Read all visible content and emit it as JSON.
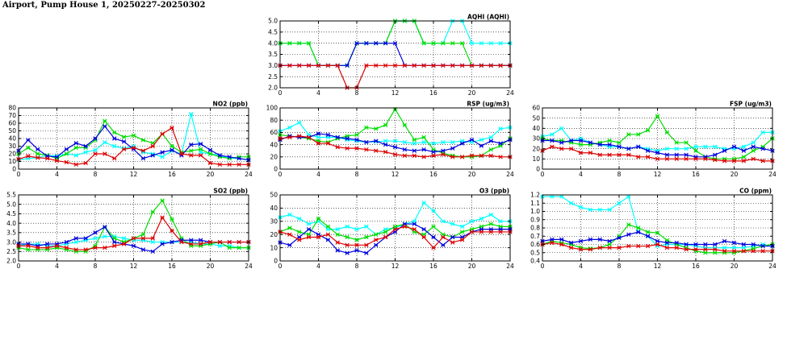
{
  "page": {
    "title": "Airport, Pump House 1, 20250227-20250302"
  },
  "colors": {
    "series": [
      "#00ffff",
      "#00dd00",
      "#0000dd",
      "#dd0000"
    ],
    "grid": "#000000"
  },
  "chart_data": [
    {
      "id": "aqhi",
      "type": "line",
      "title": "AQHI (AQHI)",
      "ylim": [
        2.0,
        5.0
      ],
      "yticks": [
        2.0,
        2.5,
        3.0,
        3.5,
        4.0,
        4.5,
        5.0
      ],
      "ytick_labels": [
        "2.0",
        "2.5",
        "3.0",
        "3.5",
        "4.0",
        "4.5",
        "5.0"
      ],
      "xlim": [
        0,
        24
      ],
      "xticks": [
        0,
        4,
        8,
        12,
        16,
        20,
        24
      ],
      "xtick_labels": [
        "0",
        "4",
        "8",
        "12",
        "16",
        "20",
        "24"
      ],
      "grid": true,
      "series": [
        {
          "color": "#00ffff",
          "values": [
            4,
            4,
            4,
            4,
            3,
            3,
            3,
            3,
            4,
            4,
            4,
            4,
            5,
            5,
            5,
            4,
            4,
            4,
            5,
            5,
            4,
            4,
            4,
            4,
            4
          ]
        },
        {
          "color": "#00dd00",
          "values": [
            4,
            4,
            4,
            4,
            3,
            3,
            3,
            3,
            4,
            4,
            4,
            4,
            5,
            5,
            5,
            4,
            4,
            4,
            4,
            4,
            3,
            3,
            3,
            3,
            3
          ]
        },
        {
          "color": "#0000dd",
          "values": [
            3,
            3,
            3,
            3,
            3,
            3,
            3,
            3,
            4,
            4,
            4,
            4,
            4,
            3,
            3,
            3,
            3,
            3,
            3,
            3,
            3,
            3,
            3,
            3,
            3
          ]
        },
        {
          "color": "#dd0000",
          "values": [
            3,
            3,
            3,
            3,
            3,
            3,
            3,
            2,
            2,
            3,
            3,
            3,
            3,
            3,
            3,
            3,
            3,
            3,
            3,
            3,
            3,
            3,
            3,
            3,
            3
          ]
        }
      ]
    },
    {
      "id": "no2",
      "type": "line",
      "title": "NO2 (ppb)",
      "ylim": [
        0,
        80
      ],
      "yticks": [
        0,
        10,
        20,
        30,
        40,
        50,
        60,
        70,
        80
      ],
      "ytick_labels": [
        "0",
        "10",
        "20",
        "30",
        "40",
        "50",
        "60",
        "70",
        "80"
      ],
      "xlim": [
        0,
        24
      ],
      "xticks": [
        0,
        4,
        8,
        12,
        16,
        20,
        24
      ],
      "xtick_labels": [
        "0",
        "4",
        "8",
        "12",
        "16",
        "20",
        "24"
      ],
      "grid": true,
      "series": [
        {
          "color": "#00ffff",
          "values": [
            12,
            14,
            15,
            18,
            17,
            20,
            18,
            22,
            25,
            35,
            30,
            27,
            30,
            22,
            20,
            16,
            24,
            20,
            72,
            22,
            20,
            18,
            14,
            14,
            12
          ]
        },
        {
          "color": "#00dd00",
          "values": [
            20,
            28,
            20,
            18,
            14,
            20,
            28,
            28,
            38,
            63,
            48,
            42,
            44,
            38,
            34,
            46,
            30,
            22,
            24,
            26,
            20,
            16,
            14,
            16,
            16
          ]
        },
        {
          "color": "#0000dd",
          "values": [
            24,
            38,
            26,
            17,
            16,
            26,
            34,
            30,
            40,
            56,
            40,
            36,
            26,
            14,
            18,
            22,
            25,
            18,
            32,
            33,
            25,
            18,
            16,
            14,
            12
          ]
        },
        {
          "color": "#dd0000",
          "values": [
            13,
            17,
            15,
            14,
            11,
            9,
            6,
            8,
            20,
            20,
            14,
            26,
            28,
            24,
            30,
            46,
            54,
            20,
            18,
            18,
            8,
            6,
            6,
            6,
            6
          ]
        }
      ]
    },
    {
      "id": "rsp",
      "type": "line",
      "title": "RSP (ug/m3)",
      "ylim": [
        0,
        100
      ],
      "yticks": [
        0,
        20,
        40,
        60,
        80,
        100
      ],
      "ytick_labels": [
        "0",
        "20",
        "40",
        "60",
        "80",
        "100"
      ],
      "xlim": [
        0,
        24
      ],
      "xticks": [
        0,
        4,
        8,
        12,
        16,
        20,
        24
      ],
      "xtick_labels": [
        "0",
        "4",
        "8",
        "12",
        "16",
        "20",
        "24"
      ],
      "grid": true,
      "series": [
        {
          "color": "#00ffff",
          "values": [
            62,
            68,
            76,
            56,
            52,
            52,
            52,
            48,
            46,
            44,
            45,
            46,
            46,
            44,
            42,
            44,
            42,
            44,
            44,
            46,
            44,
            48,
            52,
            66,
            68
          ]
        },
        {
          "color": "#00dd00",
          "values": [
            56,
            54,
            52,
            50,
            46,
            44,
            50,
            54,
            56,
            68,
            66,
            72,
            98,
            72,
            48,
            52,
            32,
            26,
            22,
            20,
            20,
            22,
            32,
            38,
            50
          ]
        },
        {
          "color": "#0000dd",
          "values": [
            48,
            54,
            52,
            52,
            58,
            56,
            52,
            50,
            48,
            44,
            46,
            40,
            36,
            32,
            30,
            32,
            28,
            30,
            34,
            42,
            48,
            38,
            46,
            42,
            48
          ]
        },
        {
          "color": "#dd0000",
          "values": [
            50,
            52,
            54,
            52,
            42,
            42,
            36,
            34,
            34,
            32,
            30,
            28,
            24,
            22,
            22,
            20,
            22,
            24,
            20,
            20,
            22,
            22,
            22,
            20,
            20
          ]
        }
      ]
    },
    {
      "id": "fsp",
      "type": "line",
      "title": "FSP (ug/m3)",
      "ylim": [
        0,
        60
      ],
      "yticks": [
        0,
        10,
        20,
        30,
        40,
        50,
        60
      ],
      "ytick_labels": [
        "0",
        "10",
        "20",
        "30",
        "40",
        "50",
        "60"
      ],
      "xlim": [
        0,
        24
      ],
      "xticks": [
        0,
        4,
        8,
        12,
        16,
        20,
        24
      ],
      "xtick_labels": [
        "0",
        "4",
        "8",
        "12",
        "16",
        "20",
        "24"
      ],
      "grid": true,
      "series": [
        {
          "color": "#00ffff",
          "values": [
            32,
            34,
            40,
            28,
            30,
            26,
            24,
            22,
            22,
            20,
            22,
            20,
            18,
            20,
            20,
            20,
            22,
            22,
            22,
            20,
            20,
            22,
            26,
            36,
            36
          ]
        },
        {
          "color": "#00dd00",
          "values": [
            30,
            28,
            28,
            26,
            24,
            24,
            26,
            28,
            26,
            34,
            34,
            38,
            52,
            36,
            26,
            26,
            18,
            12,
            10,
            10,
            10,
            12,
            18,
            22,
            30
          ]
        },
        {
          "color": "#0000dd",
          "values": [
            28,
            28,
            26,
            28,
            28,
            26,
            24,
            24,
            22,
            20,
            22,
            18,
            16,
            14,
            14,
            14,
            12,
            12,
            14,
            18,
            22,
            18,
            22,
            20,
            18
          ]
        },
        {
          "color": "#dd0000",
          "values": [
            18,
            22,
            20,
            20,
            16,
            16,
            14,
            14,
            14,
            14,
            12,
            12,
            10,
            10,
            10,
            10,
            10,
            10,
            9,
            8,
            8,
            8,
            10,
            8,
            8
          ]
        }
      ]
    },
    {
      "id": "so2",
      "type": "line",
      "title": "SO2 (ppb)",
      "ylim": [
        2.0,
        5.5
      ],
      "yticks": [
        2.0,
        2.5,
        3.0,
        3.5,
        4.0,
        4.5,
        5.0,
        5.5
      ],
      "ytick_labels": [
        "2.0",
        "2.5",
        "3.0",
        "3.5",
        "4.0",
        "4.5",
        "5.0",
        "5.5"
      ],
      "xlim": [
        0,
        24
      ],
      "xticks": [
        0,
        4,
        8,
        12,
        16,
        20,
        24
      ],
      "xtick_labels": [
        "0",
        "4",
        "8",
        "12",
        "16",
        "20",
        "24"
      ],
      "grid": true,
      "series": [
        {
          "color": "#00ffff",
          "values": [
            2.8,
            2.9,
            2.9,
            2.8,
            2.8,
            2.9,
            3.0,
            3.1,
            3.2,
            3.3,
            3.3,
            3.2,
            3.1,
            3.1,
            3.0,
            3.0,
            3.0,
            3.0,
            3.0,
            2.9,
            2.9,
            2.8,
            2.8,
            2.7,
            2.7
          ]
        },
        {
          "color": "#00dd00",
          "values": [
            2.7,
            2.6,
            2.6,
            2.6,
            2.7,
            2.6,
            2.5,
            2.5,
            2.8,
            3.8,
            3.2,
            3.0,
            3.2,
            3.4,
            4.6,
            5.2,
            4.2,
            3.2,
            2.8,
            2.8,
            2.9,
            3.0,
            2.7,
            2.7,
            2.7
          ]
        },
        {
          "color": "#0000dd",
          "values": [
            2.9,
            2.9,
            2.8,
            2.9,
            2.9,
            3.0,
            3.2,
            3.2,
            3.5,
            3.8,
            3.0,
            2.9,
            2.8,
            2.6,
            2.5,
            2.9,
            3.0,
            3.1,
            3.1,
            3.1,
            3.0,
            3.0,
            3.0,
            3.0,
            3.0
          ]
        },
        {
          "color": "#dd0000",
          "values": [
            2.8,
            2.8,
            2.7,
            2.7,
            2.8,
            2.7,
            2.6,
            2.6,
            2.7,
            2.7,
            2.8,
            2.9,
            3.2,
            3.2,
            3.2,
            4.3,
            3.6,
            3.0,
            2.9,
            2.9,
            3.0,
            3.0,
            3.0,
            3.0,
            3.0
          ]
        }
      ]
    },
    {
      "id": "o3",
      "type": "line",
      "title": "O3 (ppb)",
      "ylim": [
        0,
        50
      ],
      "yticks": [
        0,
        10,
        20,
        30,
        40,
        50
      ],
      "ytick_labels": [
        "0",
        "10",
        "20",
        "30",
        "40",
        "50"
      ],
      "xlim": [
        0,
        24
      ],
      "xticks": [
        0,
        4,
        8,
        12,
        16,
        20,
        24
      ],
      "xtick_labels": [
        "0",
        "4",
        "8",
        "12",
        "16",
        "20",
        "24"
      ],
      "grid": true,
      "series": [
        {
          "color": "#00ffff",
          "values": [
            33,
            35,
            32,
            28,
            30,
            24,
            24,
            26,
            24,
            26,
            20,
            24,
            25,
            28,
            30,
            44,
            38,
            30,
            28,
            26,
            30,
            32,
            35,
            30,
            30
          ]
        },
        {
          "color": "#00dd00",
          "values": [
            22,
            25,
            22,
            20,
            32,
            26,
            20,
            18,
            16,
            18,
            20,
            22,
            26,
            28,
            22,
            20,
            26,
            20,
            18,
            22,
            24,
            26,
            28,
            26,
            26
          ]
        },
        {
          "color": "#0000dd",
          "values": [
            14,
            12,
            18,
            24,
            20,
            16,
            8,
            6,
            8,
            6,
            12,
            18,
            22,
            28,
            28,
            24,
            18,
            12,
            18,
            18,
            22,
            24,
            24,
            24,
            24
          ]
        },
        {
          "color": "#dd0000",
          "values": [
            22,
            20,
            16,
            18,
            18,
            20,
            14,
            12,
            12,
            12,
            16,
            18,
            24,
            26,
            24,
            18,
            10,
            18,
            14,
            16,
            22,
            22,
            22,
            22,
            22
          ]
        }
      ]
    },
    {
      "id": "co",
      "type": "line",
      "title": "CO (ppm)",
      "ylim": [
        0.4,
        1.2
      ],
      "yticks": [
        0.4,
        0.5,
        0.6,
        0.7,
        0.8,
        0.9,
        1.0,
        1.1,
        1.2
      ],
      "ytick_labels": [
        "0.4",
        "0.5",
        "0.6",
        "0.7",
        "0.8",
        "0.9",
        "1.0",
        "1.1",
        "1.2"
      ],
      "xlim": [
        0,
        24
      ],
      "xticks": [
        0,
        4,
        8,
        12,
        16,
        20,
        24
      ],
      "xtick_labels": [
        "0",
        "4",
        "8",
        "12",
        "16",
        "20",
        "24"
      ],
      "grid": true,
      "series": [
        {
          "color": "#00ffff",
          "values": [
            1.18,
            1.18,
            1.18,
            1.1,
            1.05,
            1.02,
            1.02,
            1.02,
            1.1,
            1.18,
            0.75,
            0.7,
            0.58,
            0.6,
            0.6,
            0.6,
            0.58,
            0.56,
            0.56,
            0.56,
            0.56,
            0.56,
            0.58,
            0.6,
            0.58
          ]
        },
        {
          "color": "#00dd00",
          "values": [
            0.6,
            0.64,
            0.62,
            0.6,
            0.56,
            0.55,
            0.56,
            0.6,
            0.7,
            0.84,
            0.8,
            0.75,
            0.74,
            0.65,
            0.6,
            0.56,
            0.52,
            0.5,
            0.5,
            0.5,
            0.5,
            0.52,
            0.55,
            0.58,
            0.6
          ]
        },
        {
          "color": "#0000dd",
          "values": [
            0.64,
            0.66,
            0.66,
            0.62,
            0.64,
            0.66,
            0.66,
            0.64,
            0.68,
            0.72,
            0.75,
            0.7,
            0.64,
            0.62,
            0.62,
            0.6,
            0.6,
            0.6,
            0.6,
            0.64,
            0.62,
            0.6,
            0.6,
            0.58,
            0.58
          ]
        },
        {
          "color": "#dd0000",
          "values": [
            0.6,
            0.62,
            0.6,
            0.56,
            0.54,
            0.54,
            0.56,
            0.56,
            0.56,
            0.58,
            0.58,
            0.58,
            0.6,
            0.56,
            0.56,
            0.54,
            0.54,
            0.54,
            0.54,
            0.52,
            0.52,
            0.52,
            0.52,
            0.52,
            0.52
          ]
        }
      ]
    }
  ]
}
